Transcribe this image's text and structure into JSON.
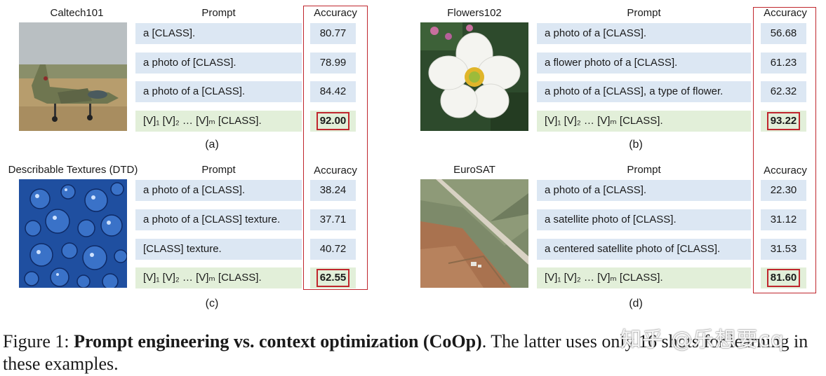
{
  "panels": [
    {
      "dataset": "Caltech101",
      "prompt_header": "Prompt",
      "accuracy_header": "Accuracy",
      "rows": [
        {
          "prompt": "a [CLASS].",
          "accuracy": "80.77"
        },
        {
          "prompt": "a photo of [CLASS].",
          "accuracy": "78.99"
        },
        {
          "prompt": "a photo of a [CLASS].",
          "accuracy": "84.42"
        },
        {
          "prompt": "[V]₁ [V]₂ … [V]ₘ [CLASS].",
          "accuracy": "92.00"
        }
      ],
      "label": "(a)",
      "image_icon": "airplane-photo"
    },
    {
      "dataset": "Flowers102",
      "prompt_header": "Prompt",
      "accuracy_header": "Accuracy",
      "rows": [
        {
          "prompt": "a photo of a [CLASS].",
          "accuracy": "56.68"
        },
        {
          "prompt": "a flower photo of a [CLASS].",
          "accuracy": "61.23"
        },
        {
          "prompt": "a photo of a [CLASS], a type of flower.",
          "accuracy": "62.32"
        },
        {
          "prompt": "[V]₁ [V]₂ … [V]ₘ [CLASS].",
          "accuracy": "93.22"
        }
      ],
      "label": "(b)",
      "image_icon": "flower-photo"
    },
    {
      "dataset": "Describable Textures (DTD)",
      "prompt_header": "Prompt",
      "accuracy_header": "Accuracy",
      "rows": [
        {
          "prompt": "a photo of a [CLASS].",
          "accuracy": "38.24"
        },
        {
          "prompt": "a photo of a [CLASS] texture.",
          "accuracy": "37.71"
        },
        {
          "prompt": "[CLASS] texture.",
          "accuracy": "40.72"
        },
        {
          "prompt": "[V]₁ [V]₂ … [V]ₘ [CLASS].",
          "accuracy": "62.55"
        }
      ],
      "label": "(c)",
      "image_icon": "bubbly-texture-photo"
    },
    {
      "dataset": "EuroSAT",
      "prompt_header": "Prompt",
      "accuracy_header": "Accuracy",
      "rows": [
        {
          "prompt": "a photo of a [CLASS].",
          "accuracy": "22.30"
        },
        {
          "prompt": "a satellite photo of [CLASS].",
          "accuracy": "31.12"
        },
        {
          "prompt": "a centered satellite photo of [CLASS].",
          "accuracy": "31.53"
        },
        {
          "prompt": "[V]₁ [V]₂ … [V]ₘ [CLASS].",
          "accuracy": "81.60"
        }
      ],
      "label": "(d)",
      "image_icon": "satellite-photo"
    }
  ],
  "caption": {
    "prefix": "Figure 1: ",
    "bold": "Prompt engineering vs. context optimization (CoOp)",
    "rest": ". The latter uses only 16 shots for learning in these examples."
  },
  "watermark": "知乎 @乐想要cq",
  "colors": {
    "hand_prompt_bg": "#dce7f3",
    "learned_prompt_bg": "#e2efd9",
    "highlight": "#c0262d"
  }
}
